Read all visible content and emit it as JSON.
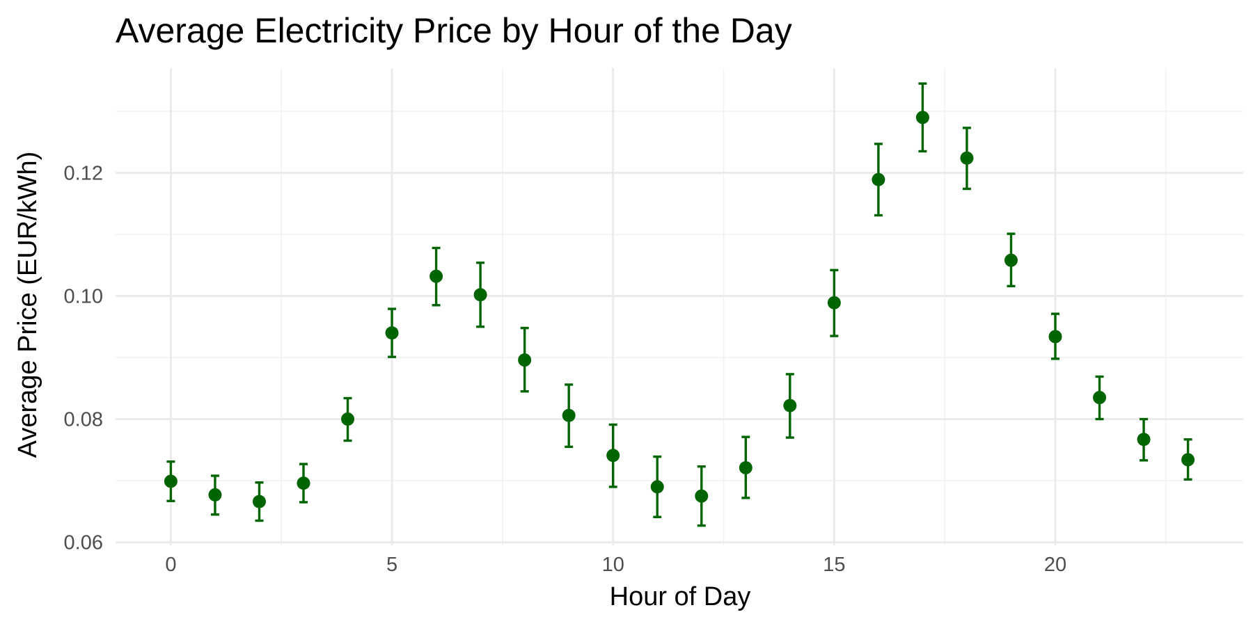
{
  "chart_data": {
    "type": "scatter",
    "title": "Average Electricity Price by Hour of the Day",
    "xlabel": "Hour of Day",
    "ylabel": "Average Price (EUR/kWh)",
    "xlim": [
      -1.25,
      24.25
    ],
    "ylim": [
      0.0595,
      0.137
    ],
    "x_ticks": [
      0,
      5,
      10,
      15,
      20
    ],
    "x_tick_labels": [
      "0",
      "5",
      "10",
      "15",
      "20"
    ],
    "x_minor_ticks": [
      2.5,
      7.5,
      12.5,
      17.5,
      22.5
    ],
    "y_ticks": [
      0.06,
      0.08,
      0.1,
      0.12
    ],
    "y_tick_labels": [
      "0.06",
      "0.08",
      "0.10",
      "0.12"
    ],
    "y_minor_ticks": [
      0.07,
      0.09,
      0.11,
      0.13
    ],
    "grid": true,
    "legend": "none",
    "color": "#006400",
    "error_bars": true,
    "series": [
      {
        "x": [
          0,
          1,
          2,
          3,
          4,
          5,
          6,
          7,
          8,
          9,
          10,
          11,
          12,
          13,
          14,
          15,
          16,
          17,
          18,
          19,
          20,
          21,
          22,
          23
        ],
        "y": [
          0.0699,
          0.0677,
          0.0666,
          0.0696,
          0.08,
          0.094,
          0.1032,
          0.1002,
          0.0896,
          0.0806,
          0.0741,
          0.069,
          0.0675,
          0.0721,
          0.0822,
          0.0989,
          0.1189,
          0.129,
          0.1224,
          0.1058,
          0.0934,
          0.0835,
          0.0767,
          0.0734
        ],
        "ymin": [
          0.0667,
          0.0645,
          0.0635,
          0.0665,
          0.0765,
          0.0901,
          0.0985,
          0.095,
          0.0845,
          0.0755,
          0.069,
          0.0641,
          0.0627,
          0.0672,
          0.077,
          0.0935,
          0.1131,
          0.1235,
          0.1174,
          0.1016,
          0.0898,
          0.08,
          0.0733,
          0.0702
        ],
        "ymax": [
          0.0731,
          0.0708,
          0.0697,
          0.0727,
          0.0834,
          0.0979,
          0.1078,
          0.1054,
          0.0948,
          0.0856,
          0.0791,
          0.0739,
          0.0723,
          0.0771,
          0.0873,
          0.1042,
          0.1247,
          0.1345,
          0.1273,
          0.1101,
          0.0971,
          0.0869,
          0.08,
          0.0767
        ]
      }
    ]
  }
}
